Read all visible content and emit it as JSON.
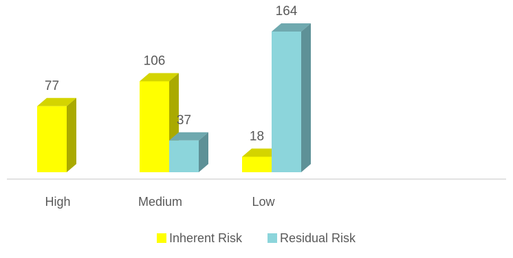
{
  "chart_data": {
    "type": "bar",
    "style": "3d-clustered-column",
    "categories": [
      "High",
      "Medium",
      "Low"
    ],
    "series": [
      {
        "name": "Inherent Risk",
        "values": [
          77,
          106,
          18
        ],
        "color": "#FFFF00",
        "side_color": "#AAAA00",
        "top_color": "#D4D400"
      },
      {
        "name": "Residual Risk",
        "values": [
          null,
          37,
          164
        ],
        "color": "#8CD5DB",
        "side_color": "#5E9197",
        "top_color": "#6FA9AF"
      }
    ],
    "ylim": [
      0,
      164
    ],
    "data_labels": true,
    "grid": false,
    "legend_position": "bottom",
    "axis_color": "#D9D9D9"
  }
}
